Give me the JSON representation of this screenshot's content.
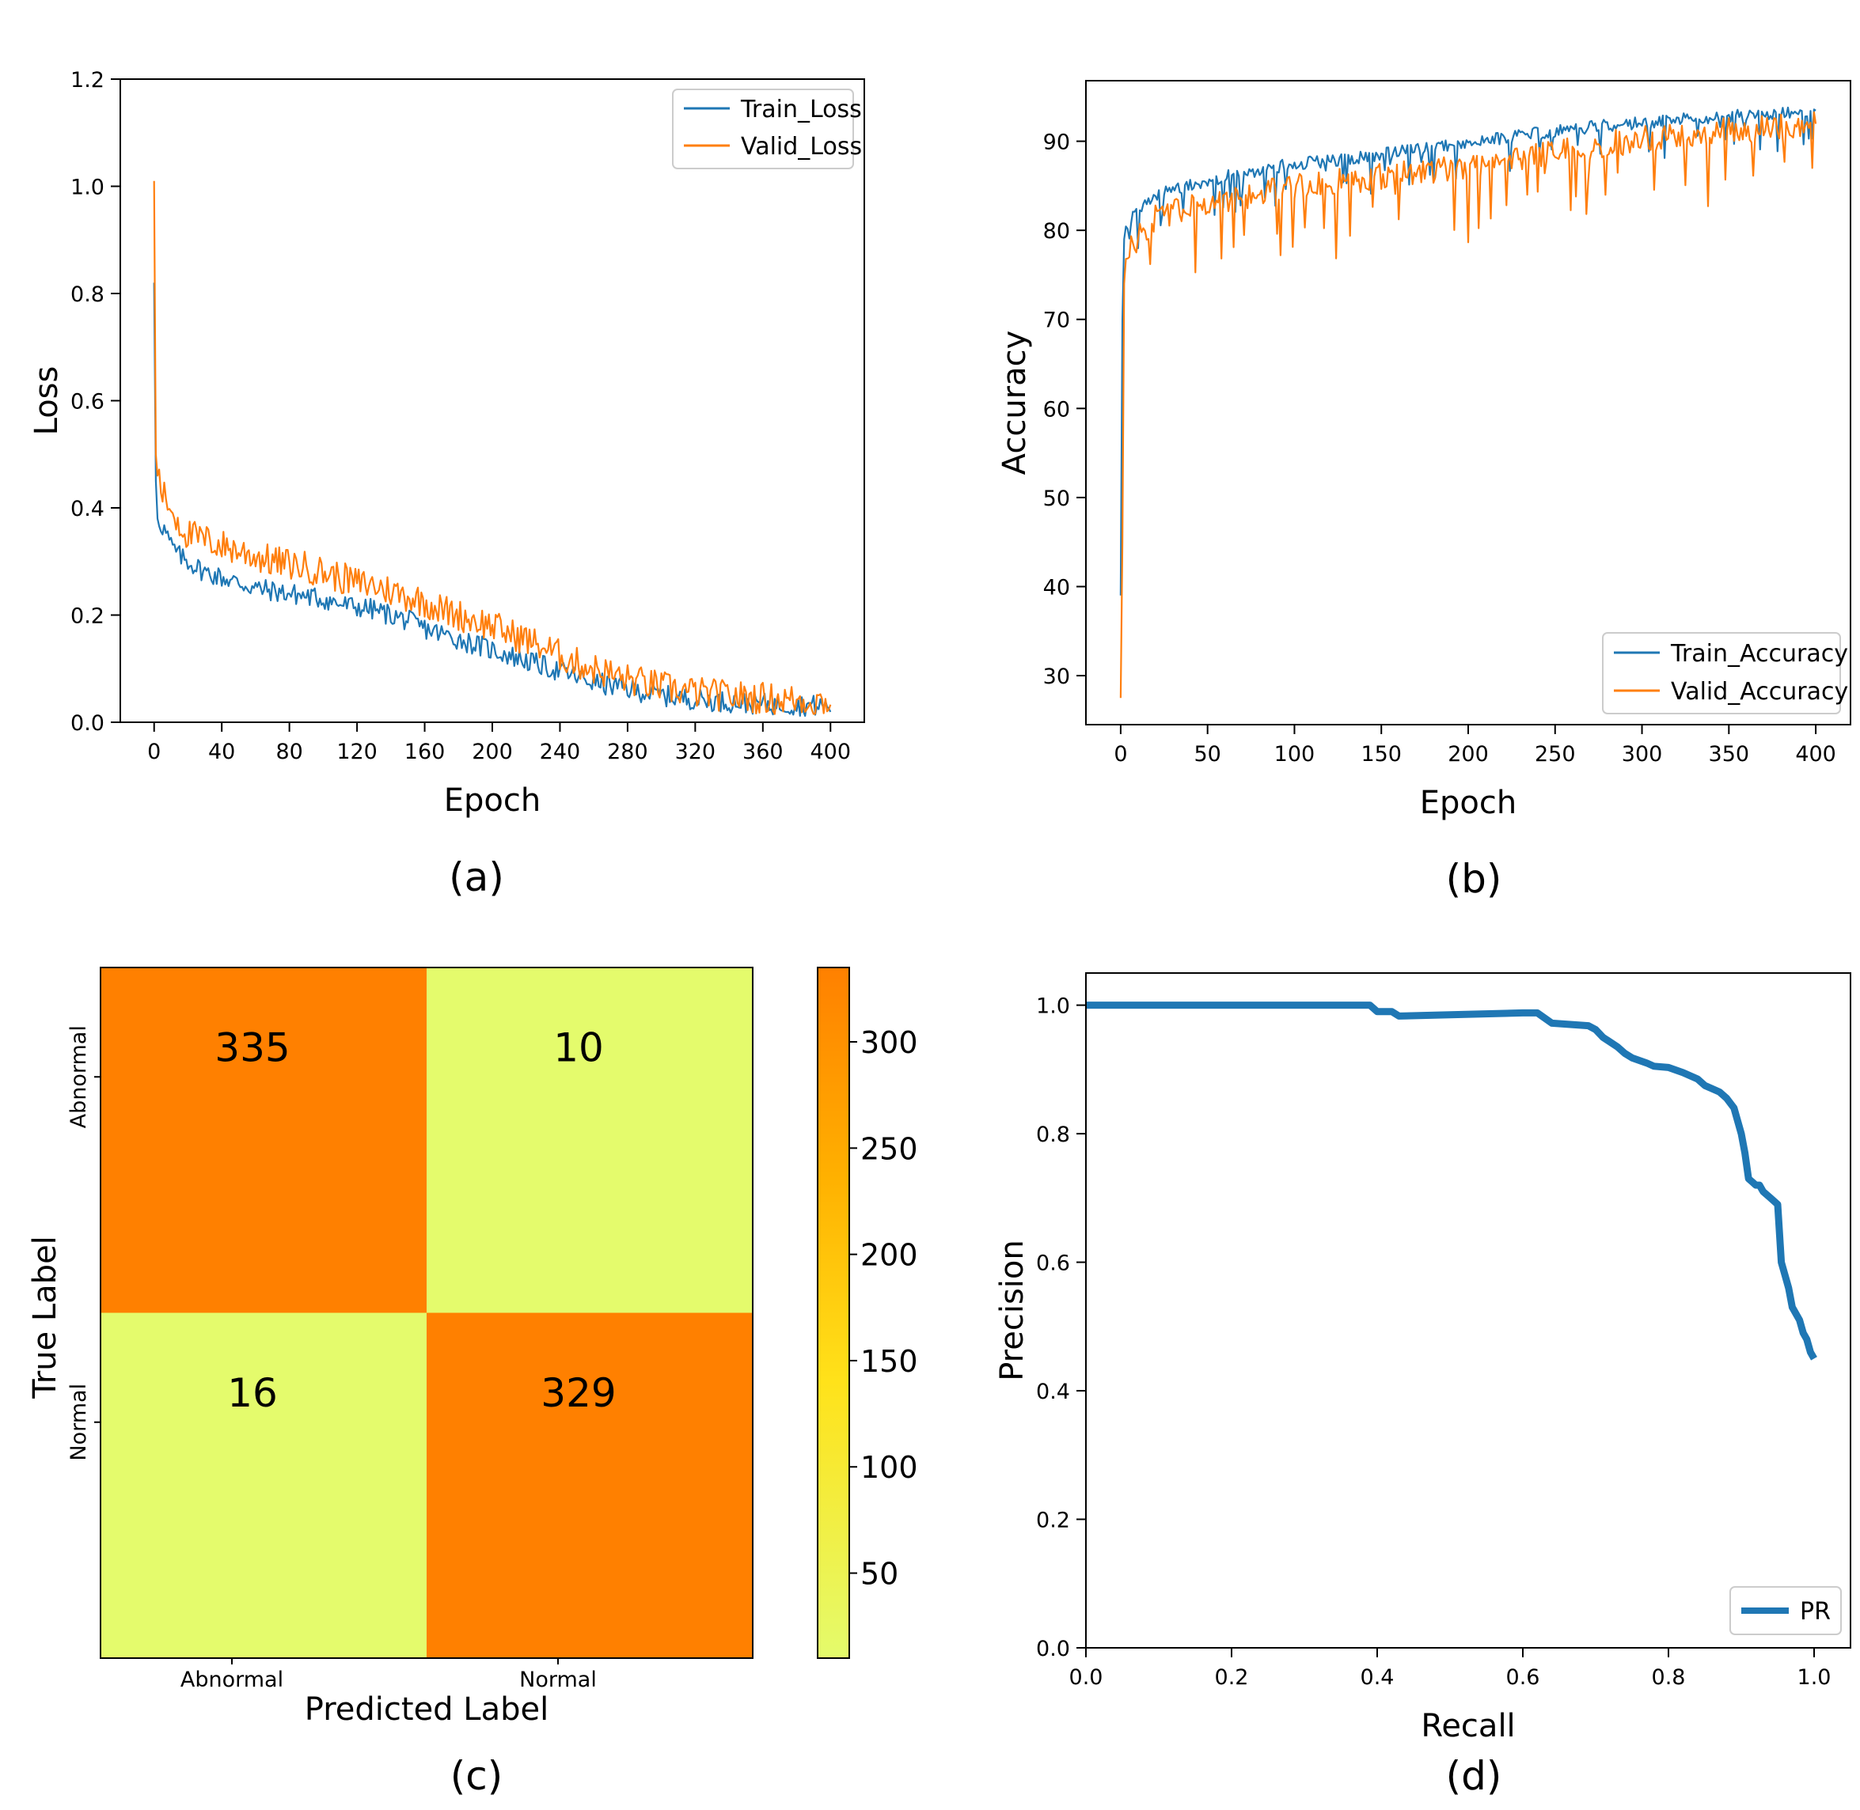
{
  "panel_labels": [
    "(a)",
    "(b)",
    "(c)",
    "(d)"
  ],
  "colors": {
    "train": "#1f77b4",
    "valid": "#ff7f0e",
    "pr": "#1f77b4",
    "cm_high": "#ff8000",
    "cm_low": "#e4fb6c"
  },
  "chart_data": [
    {
      "id": "a",
      "type": "line",
      "title": "",
      "xlabel": "Epoch",
      "ylabel": "Loss",
      "xlim": [
        -20,
        420
      ],
      "ylim": [
        0,
        1.2
      ],
      "xticks": [
        0,
        40,
        80,
        120,
        160,
        200,
        240,
        280,
        320,
        360,
        400
      ],
      "yticks": [
        0.0,
        0.2,
        0.4,
        0.6,
        0.8,
        1.0,
        1.2
      ],
      "ytick_labels": [
        "0.0",
        "0.2",
        "0.4",
        "0.6",
        "0.8",
        "1.0",
        "1.2"
      ],
      "legend_position": "top-right",
      "series": [
        {
          "name": "Train_Loss",
          "x": [
            0,
            1,
            2,
            4,
            6,
            10,
            15,
            20,
            30,
            40,
            50,
            60,
            70,
            80,
            90,
            100,
            110,
            120,
            130,
            140,
            150,
            160,
            170,
            180,
            190,
            200,
            210,
            220,
            230,
            240,
            250,
            260,
            270,
            280,
            290,
            300,
            310,
            320,
            330,
            340,
            350,
            360,
            370,
            380,
            390,
            400
          ],
          "y": [
            0.82,
            0.45,
            0.38,
            0.37,
            0.36,
            0.33,
            0.31,
            0.3,
            0.28,
            0.27,
            0.26,
            0.25,
            0.245,
            0.24,
            0.235,
            0.23,
            0.22,
            0.215,
            0.21,
            0.2,
            0.19,
            0.175,
            0.165,
            0.155,
            0.145,
            0.135,
            0.125,
            0.115,
            0.105,
            0.095,
            0.085,
            0.075,
            0.068,
            0.062,
            0.056,
            0.05,
            0.046,
            0.043,
            0.04,
            0.038,
            0.036,
            0.034,
            0.033,
            0.032,
            0.031,
            0.03
          ],
          "noise": 0.02
        },
        {
          "name": "Valid_Loss",
          "x": [
            0,
            1,
            2,
            4,
            6,
            10,
            15,
            20,
            30,
            40,
            50,
            60,
            70,
            80,
            90,
            100,
            110,
            120,
            130,
            140,
            150,
            160,
            170,
            180,
            190,
            200,
            210,
            220,
            230,
            240,
            250,
            260,
            270,
            280,
            290,
            300,
            310,
            320,
            330,
            340,
            350,
            360,
            370,
            380,
            390,
            400
          ],
          "y": [
            1.01,
            0.5,
            0.46,
            0.44,
            0.42,
            0.4,
            0.37,
            0.35,
            0.34,
            0.33,
            0.32,
            0.31,
            0.3,
            0.295,
            0.29,
            0.28,
            0.27,
            0.26,
            0.255,
            0.245,
            0.235,
            0.225,
            0.21,
            0.2,
            0.19,
            0.18,
            0.165,
            0.155,
            0.14,
            0.125,
            0.11,
            0.1,
            0.09,
            0.08,
            0.073,
            0.066,
            0.06,
            0.056,
            0.052,
            0.049,
            0.047,
            0.045,
            0.043,
            0.041,
            0.04,
            0.038
          ],
          "noise": 0.03
        }
      ]
    },
    {
      "id": "b",
      "type": "line",
      "title": "",
      "xlabel": "Epoch",
      "ylabel": "Accuracy",
      "xlim": [
        -20,
        420
      ],
      "ylim": [
        24.5,
        96.8
      ],
      "xticks": [
        0,
        50,
        100,
        150,
        200,
        250,
        300,
        350,
        400
      ],
      "yticks": [
        30,
        40,
        50,
        60,
        70,
        80,
        90
      ],
      "ytick_labels": [
        "30",
        "40",
        "50",
        "60",
        "70",
        "80",
        "90"
      ],
      "legend_position": "bottom-right",
      "series": [
        {
          "name": "Train_Accuracy",
          "x": [
            0,
            1,
            2,
            3,
            5,
            10,
            20,
            30,
            40,
            50,
            60,
            80,
            100,
            120,
            140,
            160,
            180,
            200,
            220,
            240,
            260,
            280,
            300,
            320,
            340,
            360,
            380,
            400
          ],
          "y": [
            39,
            70,
            79,
            80,
            81,
            82,
            84,
            84.5,
            85,
            85.5,
            86,
            86.8,
            87.5,
            87.8,
            88.2,
            88.8,
            89.3,
            89.8,
            90.4,
            90.9,
            91.4,
            91.8,
            92.1,
            92.4,
            92.7,
            92.9,
            93.1,
            93.3
          ],
          "noise": 0.7
        },
        {
          "name": "Valid_Accuracy",
          "x": [
            0,
            1,
            2,
            3,
            5,
            10,
            20,
            30,
            40,
            50,
            60,
            80,
            100,
            120,
            140,
            160,
            180,
            200,
            220,
            240,
            260,
            280,
            300,
            320,
            340,
            360,
            380,
            400
          ],
          "y": [
            27.5,
            45,
            74,
            77,
            78,
            79,
            81.5,
            82,
            82.5,
            83,
            83.5,
            84.2,
            84.8,
            85.3,
            85.8,
            86.3,
            86.8,
            87.3,
            88,
            88.6,
            89.2,
            89.7,
            90.2,
            90.6,
            91,
            91.3,
            91.6,
            92
          ],
          "noise": 1.5
        }
      ]
    },
    {
      "id": "c",
      "type": "heatmap",
      "title": "",
      "xlabel": "Predicted Label",
      "ylabel": "True Label",
      "x_categories": [
        "Abnormal",
        "Normal"
      ],
      "y_categories": [
        "Abnormal",
        "Normal"
      ],
      "values": [
        [
          335,
          10
        ],
        [
          16,
          329
        ]
      ],
      "colorbar_range": [
        10,
        335
      ],
      "colorbar_ticks": [
        50,
        100,
        150,
        200,
        250,
        300
      ],
      "colorbar_tick_labels": [
        "50",
        "100",
        "150",
        "200",
        "250",
        "300"
      ]
    },
    {
      "id": "d",
      "type": "line",
      "title": "",
      "xlabel": "Recall",
      "ylabel": "Precision",
      "xlim": [
        0,
        1.05
      ],
      "ylim": [
        0,
        1.05
      ],
      "xticks": [
        0.0,
        0.2,
        0.4,
        0.6,
        0.8,
        1.0
      ],
      "xtick_labels": [
        "0.0",
        "0.2",
        "0.4",
        "0.6",
        "0.8",
        "1.0"
      ],
      "yticks": [
        0.0,
        0.2,
        0.4,
        0.6,
        0.8,
        1.0
      ],
      "ytick_labels": [
        "0.0",
        "0.2",
        "0.4",
        "0.6",
        "0.8",
        "1.0"
      ],
      "legend_position": "bottom-right",
      "series": [
        {
          "name": "PR",
          "x": [
            0.0,
            0.39,
            0.4,
            0.42,
            0.43,
            0.6,
            0.62,
            0.63,
            0.64,
            0.69,
            0.7,
            0.71,
            0.73,
            0.74,
            0.75,
            0.77,
            0.78,
            0.8,
            0.82,
            0.84,
            0.85,
            0.86,
            0.87,
            0.88,
            0.89,
            0.9,
            0.905,
            0.91,
            0.915,
            0.92,
            0.925,
            0.93,
            0.94,
            0.95,
            0.955,
            0.96,
            0.965,
            0.97,
            0.975,
            0.98,
            0.985,
            0.99,
            0.995,
            1.0
          ],
          "y": [
            1.0,
            1.0,
            0.99,
            0.99,
            0.983,
            0.988,
            0.988,
            0.98,
            0.972,
            0.968,
            0.962,
            0.95,
            0.935,
            0.925,
            0.918,
            0.91,
            0.905,
            0.903,
            0.895,
            0.885,
            0.875,
            0.87,
            0.865,
            0.855,
            0.84,
            0.8,
            0.77,
            0.73,
            0.725,
            0.72,
            0.72,
            0.71,
            0.7,
            0.69,
            0.6,
            0.58,
            0.56,
            0.53,
            0.52,
            0.51,
            0.49,
            0.48,
            0.46,
            0.45
          ]
        }
      ]
    }
  ]
}
